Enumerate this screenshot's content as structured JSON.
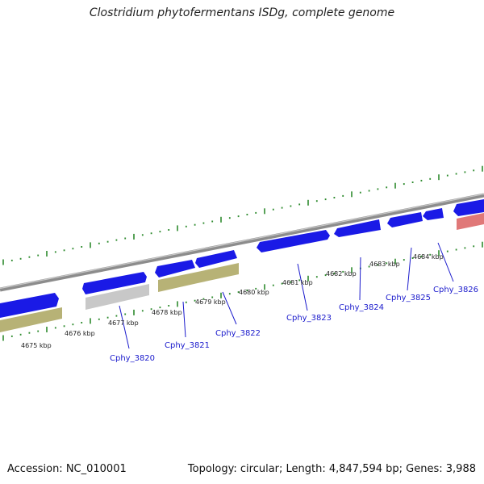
{
  "title": "Clostridium phytofermentans ISDg, complete genome",
  "footer": {
    "accession": "Accession: NC_010001",
    "topology": "Topology: circular; Length: 4,847,594 bp; Genes: 3,988"
  },
  "colors": {
    "gene_forward": "#1a1ae6",
    "gene_orf": "#b7b276",
    "gene_grey": "#c8c8c8",
    "gene_rna": "#e07878",
    "backbone": "#8c8c8c",
    "tick": "#2e8b2e",
    "gene_label": "#1a1acc",
    "kbp_label": "#222222"
  },
  "kbp_labels": [
    "4675 kbp",
    "4676 kbp",
    "4677 kbp",
    "4678 kbp",
    "4679 kbp",
    "4680 kbp",
    "4681 kbp",
    "4682 kbp",
    "4683 kbp",
    "4684 kbp"
  ],
  "gene_labels": [
    "Cphy_3820",
    "Cphy_3821",
    "Cphy_3822",
    "Cphy_3823",
    "Cphy_3824",
    "Cphy_3825",
    "Cphy_3826"
  ]
}
